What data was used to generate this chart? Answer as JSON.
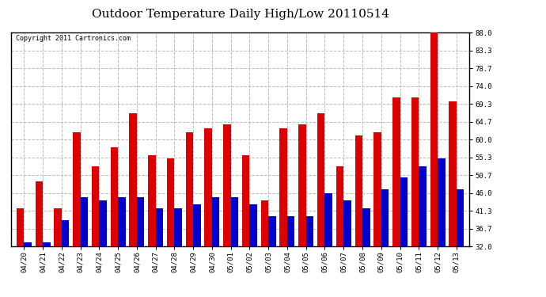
{
  "title": "Outdoor Temperature Daily High/Low 20110514",
  "copyright": "Copyright 2011 Cartronics.com",
  "dates": [
    "04/20",
    "04/21",
    "04/22",
    "04/23",
    "04/24",
    "04/25",
    "04/26",
    "04/27",
    "04/28",
    "04/29",
    "04/30",
    "05/01",
    "05/02",
    "05/03",
    "05/04",
    "05/05",
    "05/06",
    "05/07",
    "05/08",
    "05/09",
    "05/10",
    "05/11",
    "05/12",
    "05/13"
  ],
  "highs": [
    42,
    49,
    42,
    62,
    53,
    58,
    67,
    56,
    55,
    62,
    63,
    64,
    56,
    44,
    63,
    64,
    67,
    53,
    61,
    62,
    71,
    71,
    88,
    70
  ],
  "lows": [
    33,
    33,
    39,
    45,
    44,
    45,
    45,
    42,
    42,
    43,
    45,
    45,
    43,
    40,
    40,
    40,
    46,
    44,
    42,
    47,
    50,
    53,
    55,
    47
  ],
  "high_color": "#dd0000",
  "low_color": "#0000cc",
  "background_color": "#ffffff",
  "grid_color": "#bbbbbb",
  "ymin": 32.0,
  "ymax": 88.0,
  "yticks": [
    32.0,
    36.7,
    41.3,
    46.0,
    50.7,
    55.3,
    60.0,
    64.7,
    69.3,
    74.0,
    78.7,
    83.3,
    88.0
  ],
  "title_fontsize": 11,
  "copyright_fontsize": 6,
  "tick_fontsize": 6.5,
  "bar_width": 0.4
}
